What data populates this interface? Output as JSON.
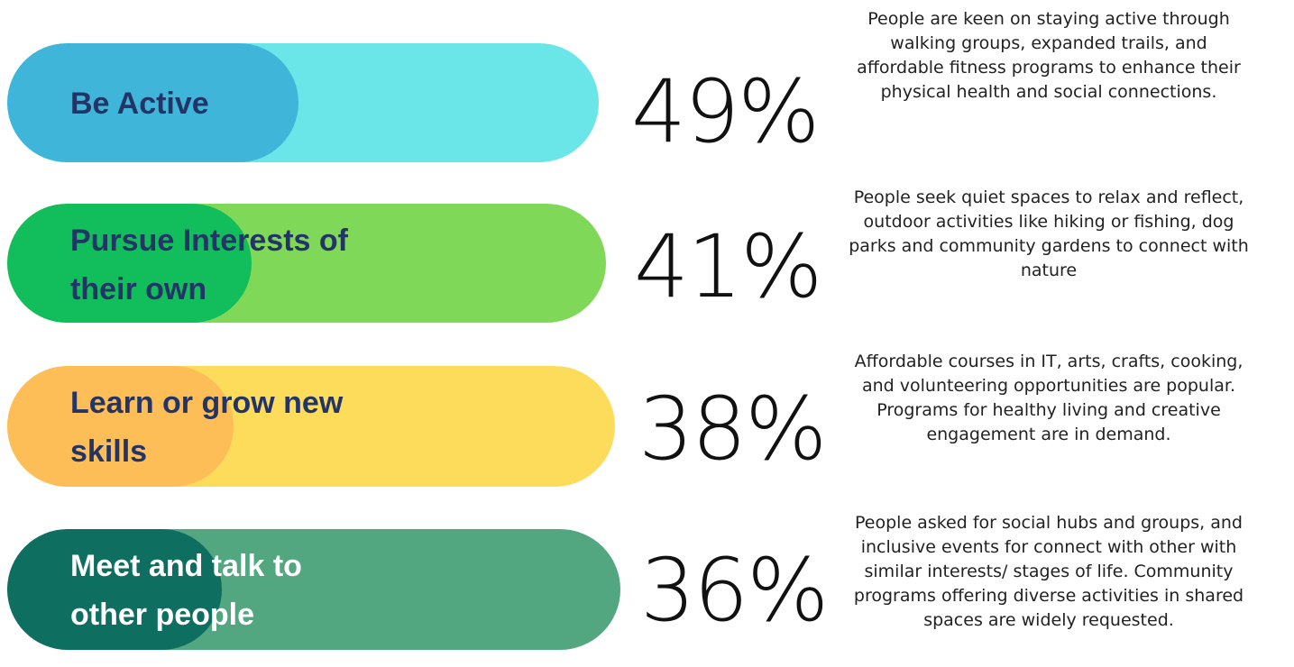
{
  "chart_data": {
    "type": "bar",
    "categories": [
      "Be Active",
      "Pursue Interests of\ntheir own",
      "Learn or grow new\nskills",
      "Meet and talk to\nother people"
    ],
    "values": [
      49,
      41,
      38,
      36
    ],
    "value_labels": [
      "49%",
      "41%",
      "38%",
      "36%"
    ],
    "descriptions": [
      "People are keen on staying active through  walking groups, expanded trails, and affordable fitness programs to enhance their physical health and social connections.",
      "People seek quiet spaces to relax and reflect, outdoor activities like hiking or fishing, dog parks and community gardens to connect with nature",
      "Affordable courses in IT, arts, crafts, cooking, and volunteering opportunities are popular. Programs for healthy living and creative engagement are in demand.",
      "People asked for social hubs and groups, and inclusive events for connect with other with similar interests/ stages of life. Community programs offering diverse activities in shared spaces are widely requested."
    ],
    "track_colors": [
      "#6ae6e8",
      "#7fd858",
      "#fddc5c",
      "#52a680"
    ],
    "fill_colors": [
      "#3fb6d9",
      "#12bd5c",
      "#fdbd57",
      "#0e6e60"
    ],
    "label_colors": [
      "#233466",
      "#233466",
      "#233466",
      "#ffffff"
    ],
    "title": "",
    "xlabel": "",
    "ylabel": "",
    "ylim": [
      0,
      100
    ],
    "grid": false
  }
}
